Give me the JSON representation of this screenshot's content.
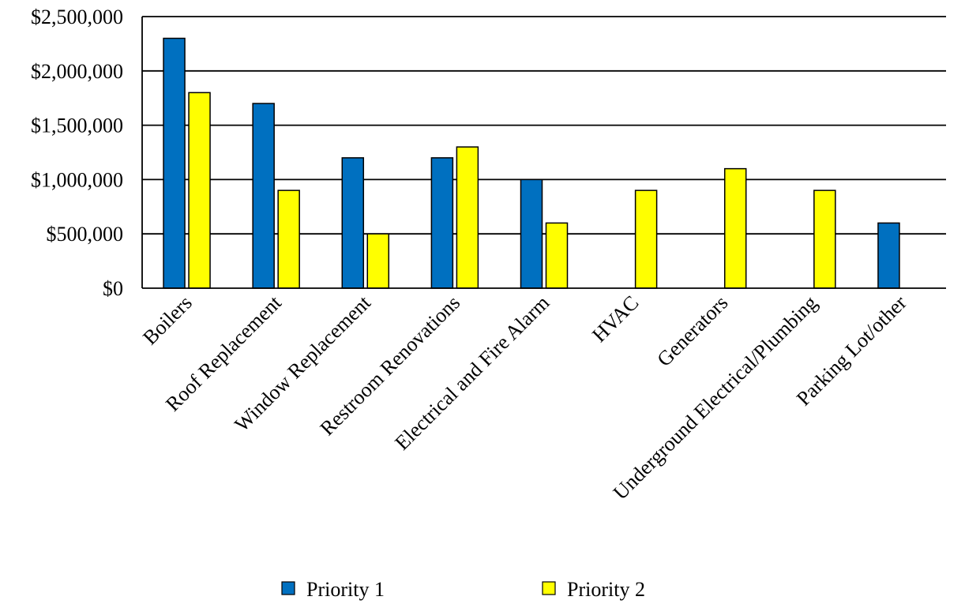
{
  "colors": {
    "priority1": "#0070C0",
    "priority2": "#FFFF00",
    "axis": "#000000",
    "grid": "#000000"
  },
  "chart_data": {
    "type": "bar",
    "title": "",
    "xlabel": "",
    "ylabel": "",
    "categories": [
      "Boilers",
      "Roof Replacement",
      "Window Replacement",
      "Restroom Renovations",
      "Electrical and Fire Alarm",
      "HVAC",
      "Generators",
      "Underground Electrical/Plumbing",
      "Parking Lot/other"
    ],
    "series": [
      {
        "name": "Priority 1",
        "values": [
          2300000,
          1700000,
          1200000,
          1200000,
          1000000,
          0,
          0,
          0,
          600000
        ]
      },
      {
        "name": "Priority 2",
        "values": [
          1800000,
          900000,
          500000,
          1300000,
          600000,
          900000,
          1100000,
          900000,
          0
        ]
      }
    ],
    "ylim": [
      0,
      2500000
    ],
    "yticks": [
      0,
      500000,
      1000000,
      1500000,
      2000000,
      2500000
    ],
    "ytick_labels": [
      "$0",
      "$500,000",
      "$1,000,000",
      "$1,500,000",
      "$2,000,000",
      "$2,500,000"
    ],
    "grid": true,
    "legend_position": "bottom"
  }
}
